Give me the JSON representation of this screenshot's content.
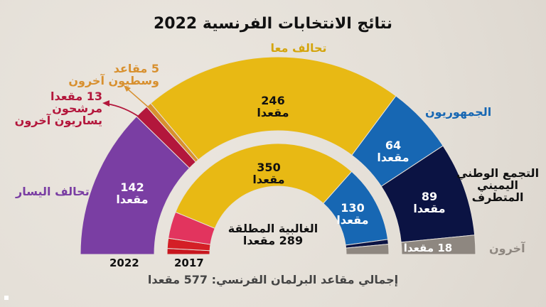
{
  "title": "نتائج الانتخابات الفرنسية 2022",
  "footer": "إجمالي مقاعد البرلمان الفرنسي: 577 مقعدا",
  "chart_data": [
    {
      "type": "pie",
      "shape": "semicircle-parliament",
      "ring": "outer",
      "label": "2022",
      "total": 577,
      "segments": [
        {
          "name": "تحالف اليسار",
          "value": 142,
          "value_label": "142",
          "unit": "مقعدا",
          "color": "#7a3ea3"
        },
        {
          "name": "مرشحون يساريون آخرون",
          "value": 13,
          "value_label": "13 مقعدا",
          "color": "#b3173c"
        },
        {
          "name": "وسطيون آخرون",
          "value": 5,
          "value_label": "5 مقاعد",
          "color": "#d8902f"
        },
        {
          "name": "تحالف معا",
          "value": 246,
          "value_label": "246",
          "unit": "مقعدا",
          "color": "#e8b914"
        },
        {
          "name": "الجمهوريون",
          "value": 64,
          "value_label": "64",
          "unit": "مقعدا",
          "color": "#1767b3"
        },
        {
          "name": "التجمع الوطني اليميني المتطرف",
          "value": 89,
          "value_label": "89",
          "unit": "مقعدا",
          "color": "#0b1343"
        },
        {
          "name": "آخرون",
          "value": 18,
          "value_label": "18 مقعدا",
          "color": "#8e8780"
        }
      ]
    },
    {
      "type": "pie",
      "shape": "semicircle-parliament",
      "ring": "inner",
      "label": "2017",
      "total": 577,
      "segments": [
        {
          "value": 10,
          "color": "#c8161f"
        },
        {
          "value": 17,
          "color": "#d41f26"
        },
        {
          "value": 45,
          "color": "#e2345e"
        },
        {
          "value": 350,
          "value_label": "350",
          "unit": "مقعدا",
          "color": "#e8b914"
        },
        {
          "value": 130,
          "value_label": "130",
          "unit": "مقعدا",
          "color": "#1767b3"
        },
        {
          "value": 8,
          "color": "#0b1343"
        },
        {
          "value": 17,
          "color": "#8e8780"
        }
      ]
    }
  ],
  "majority": {
    "label": "الغالبية المطلقة",
    "value": "289 مقعدا"
  }
}
